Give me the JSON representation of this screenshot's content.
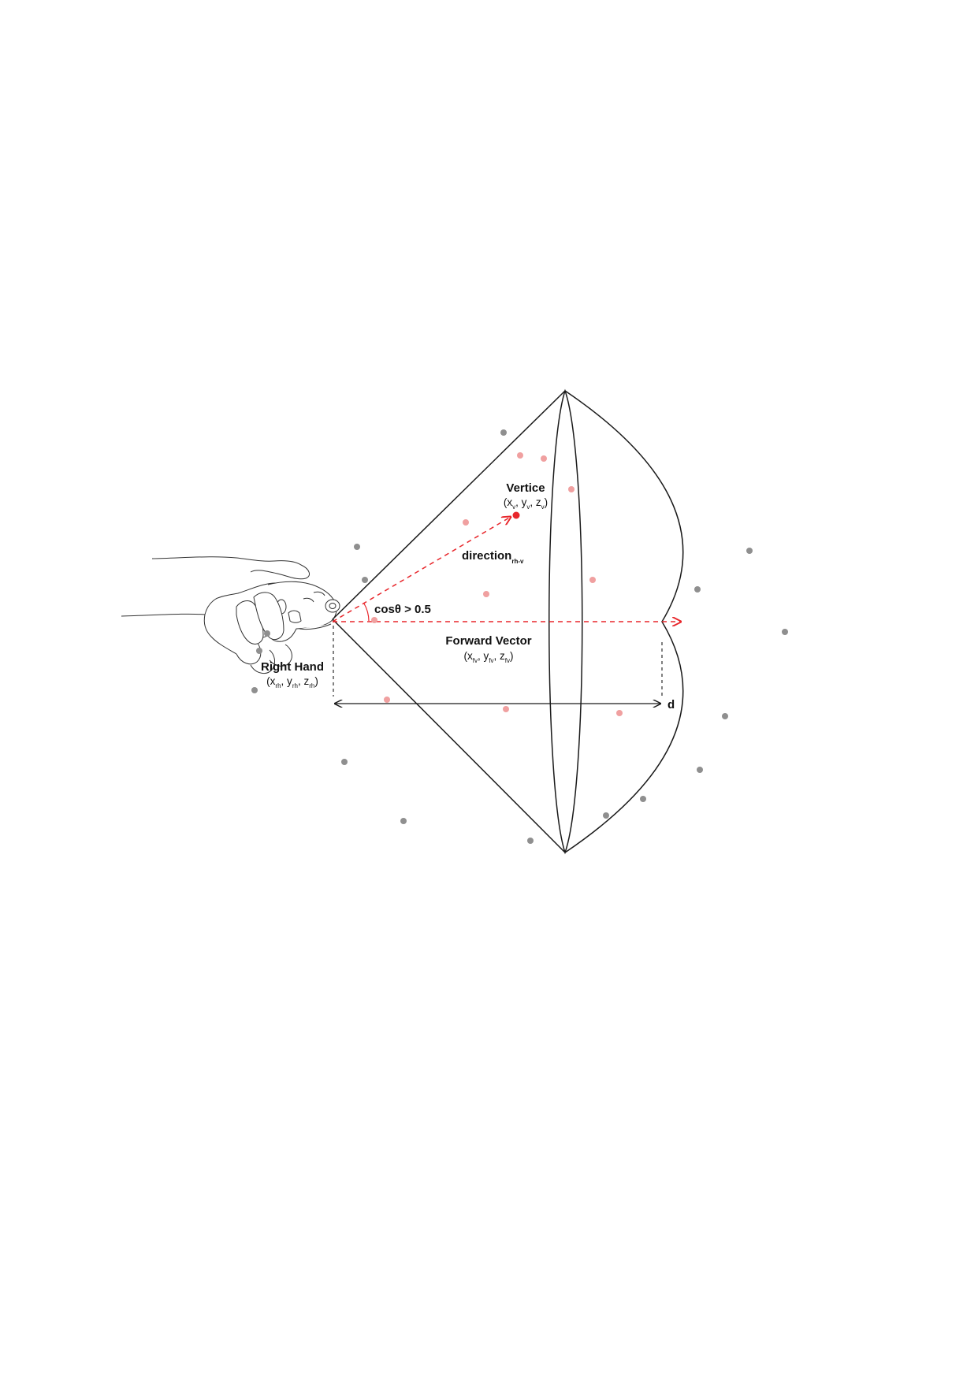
{
  "labels": {
    "vertice_title": "Vertice",
    "vertice_coord": {
      "open": "(x",
      "s1": "v",
      "m1": ", y",
      "s2": "v",
      "m2": ", z",
      "s3": "v",
      "close": ")"
    },
    "direction": {
      "base": "direction",
      "sub": "rh-v"
    },
    "angle": "cosθ > 0.5",
    "forward_title": "Forward Vector",
    "forward_coord": {
      "open": "(x",
      "s1": "fv",
      "m1": ", y",
      "s2": "fv",
      "m2": ", z",
      "s3": "fv",
      "close": ")"
    },
    "hand_title": "Right Hand",
    "hand_coord": {
      "open": "(x",
      "s1": "rh",
      "m1": ", y",
      "s2": "rh",
      "m2": ", z",
      "s3": "rh",
      "close": ")"
    },
    "distance": "d"
  },
  "colors": {
    "outline": "#1a1a1a",
    "vector": "#e8262b",
    "inside_point": "#f0a0a0",
    "outside_point": "#8f8f8f",
    "vertex_point": "#e8262b"
  }
}
